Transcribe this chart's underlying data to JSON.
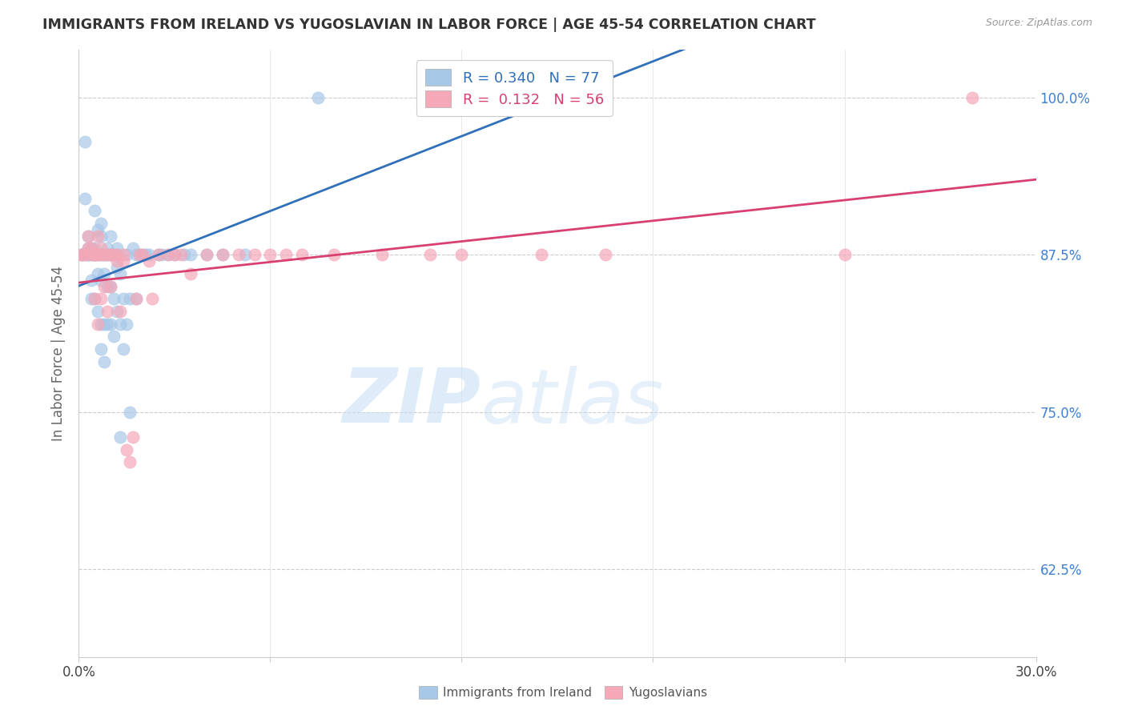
{
  "title": "IMMIGRANTS FROM IRELAND VS YUGOSLAVIAN IN LABOR FORCE | AGE 45-54 CORRELATION CHART",
  "source": "Source: ZipAtlas.com",
  "ylabel": "In Labor Force | Age 45-54",
  "ytick_labels": [
    "62.5%",
    "75.0%",
    "87.5%",
    "100.0%"
  ],
  "ytick_values": [
    0.625,
    0.75,
    0.875,
    1.0
  ],
  "xlim": [
    0.0,
    0.3
  ],
  "ylim": [
    0.555,
    1.038
  ],
  "legend_r1": "R = 0.340   N = 77",
  "legend_r2": "R =  0.132   N = 56",
  "color_ireland": "#a8c8e8",
  "color_yugoslavia": "#f4a8b8",
  "trend_color_ireland": "#3070b8",
  "trend_color_yugoslavia": "#d84070",
  "ireland_x": [
    0.001,
    0.001,
    0.002,
    0.002,
    0.002,
    0.003,
    0.003,
    0.003,
    0.003,
    0.004,
    0.004,
    0.004,
    0.004,
    0.005,
    0.005,
    0.005,
    0.005,
    0.005,
    0.006,
    0.006,
    0.006,
    0.006,
    0.006,
    0.007,
    0.007,
    0.007,
    0.007,
    0.007,
    0.007,
    0.008,
    0.008,
    0.008,
    0.008,
    0.008,
    0.009,
    0.009,
    0.009,
    0.009,
    0.01,
    0.01,
    0.01,
    0.01,
    0.01,
    0.011,
    0.011,
    0.011,
    0.012,
    0.012,
    0.012,
    0.012,
    0.013,
    0.013,
    0.013,
    0.014,
    0.014,
    0.015,
    0.015,
    0.016,
    0.016,
    0.017,
    0.018,
    0.018,
    0.019,
    0.02,
    0.021,
    0.022,
    0.025,
    0.026,
    0.028,
    0.03,
    0.033,
    0.035,
    0.04,
    0.045,
    0.052,
    0.075,
    0.11,
    0.155
  ],
  "ireland_y": [
    0.875,
    0.875,
    0.965,
    0.92,
    0.875,
    0.875,
    0.88,
    0.89,
    0.875,
    0.84,
    0.855,
    0.88,
    0.875,
    0.84,
    0.875,
    0.88,
    0.91,
    0.875,
    0.83,
    0.86,
    0.875,
    0.895,
    0.875,
    0.8,
    0.82,
    0.855,
    0.875,
    0.89,
    0.9,
    0.79,
    0.82,
    0.86,
    0.875,
    0.875,
    0.82,
    0.85,
    0.875,
    0.88,
    0.82,
    0.85,
    0.875,
    0.89,
    0.875,
    0.81,
    0.84,
    0.875,
    0.83,
    0.865,
    0.875,
    0.88,
    0.73,
    0.82,
    0.86,
    0.8,
    0.84,
    0.82,
    0.875,
    0.75,
    0.84,
    0.88,
    0.84,
    0.875,
    0.875,
    0.875,
    0.875,
    0.875,
    0.875,
    0.875,
    0.875,
    0.875,
    0.875,
    0.875,
    0.875,
    0.875,
    0.875,
    1.0,
    1.0,
    1.0
  ],
  "yugoslavia_x": [
    0.001,
    0.001,
    0.002,
    0.003,
    0.003,
    0.004,
    0.004,
    0.005,
    0.005,
    0.005,
    0.006,
    0.006,
    0.006,
    0.007,
    0.007,
    0.007,
    0.008,
    0.008,
    0.009,
    0.009,
    0.01,
    0.01,
    0.011,
    0.012,
    0.012,
    0.013,
    0.014,
    0.014,
    0.015,
    0.016,
    0.017,
    0.018,
    0.019,
    0.02,
    0.022,
    0.023,
    0.025,
    0.028,
    0.03,
    0.032,
    0.035,
    0.04,
    0.045,
    0.05,
    0.055,
    0.06,
    0.065,
    0.07,
    0.08,
    0.095,
    0.11,
    0.12,
    0.145,
    0.165,
    0.24,
    0.28
  ],
  "yugoslavia_y": [
    0.875,
    0.875,
    0.875,
    0.88,
    0.89,
    0.875,
    0.88,
    0.84,
    0.875,
    0.875,
    0.82,
    0.875,
    0.89,
    0.84,
    0.875,
    0.88,
    0.85,
    0.875,
    0.83,
    0.875,
    0.85,
    0.875,
    0.875,
    0.87,
    0.875,
    0.83,
    0.87,
    0.875,
    0.72,
    0.71,
    0.73,
    0.84,
    0.875,
    0.875,
    0.87,
    0.84,
    0.875,
    0.875,
    0.875,
    0.875,
    0.86,
    0.875,
    0.875,
    0.875,
    0.875,
    0.875,
    0.875,
    0.875,
    0.875,
    0.875,
    0.875,
    0.875,
    0.875,
    0.875,
    0.875,
    1.0
  ],
  "xtick_positions": [
    0.0,
    0.06,
    0.12,
    0.18,
    0.24,
    0.3
  ],
  "background_color": "#ffffff",
  "grid_color": "#cccccc",
  "right_label_color": "#4080d0"
}
